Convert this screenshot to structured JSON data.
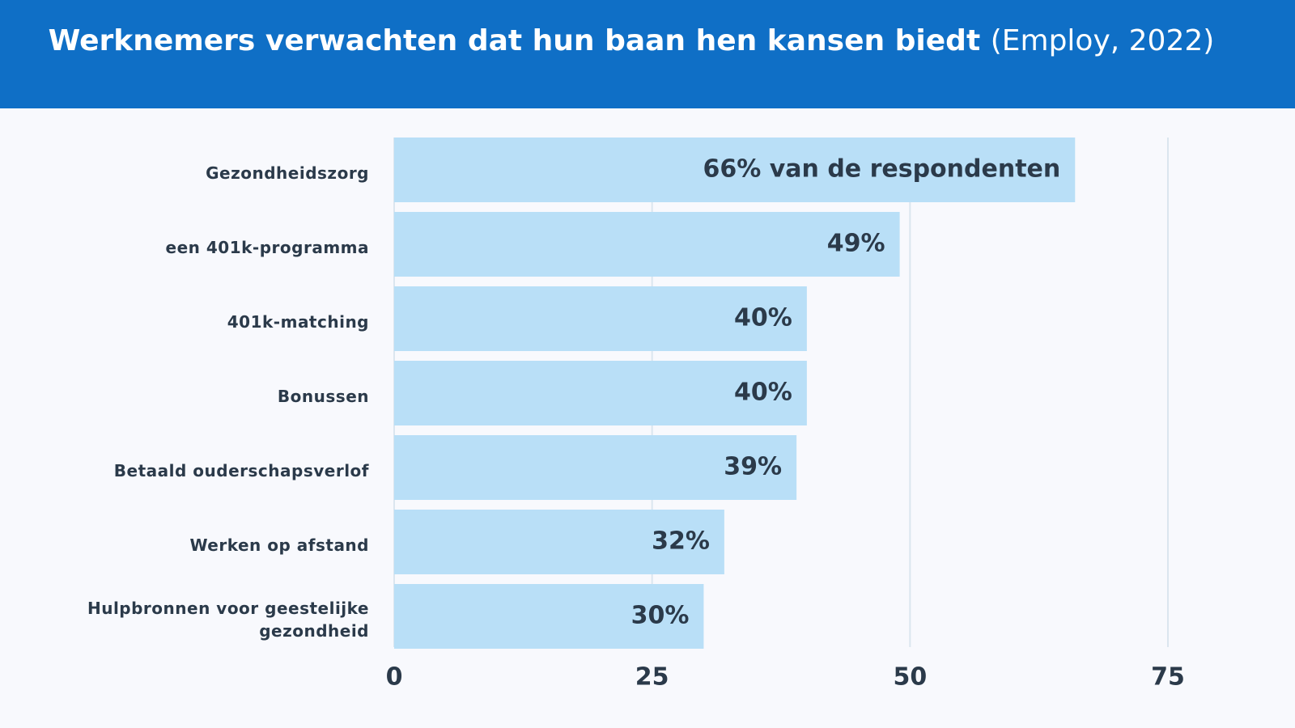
{
  "chart_data": {
    "type": "barh",
    "title": "Werknemers verwachten dat hun baan hen kansen biedt",
    "subtitle": "(Employ, 2022)",
    "categories": [
      "Gezondheidszorg",
      "een 401k-programma",
      "401k-matching",
      "Bonussen",
      "Betaald ouderschapsverlof",
      "Werken op afstand",
      "Hulpbronnen voor geestelijke gezondheid"
    ],
    "values": [
      66,
      49,
      40,
      40,
      39,
      32,
      30
    ],
    "value_labels": [
      "66% van de respondenten",
      "49%",
      "40%",
      "40%",
      "39%",
      "32%",
      "30%"
    ],
    "color": "#b9dff7",
    "xlim": [
      0,
      75
    ],
    "xticks": [
      0,
      25,
      50,
      75
    ],
    "grid": true
  }
}
